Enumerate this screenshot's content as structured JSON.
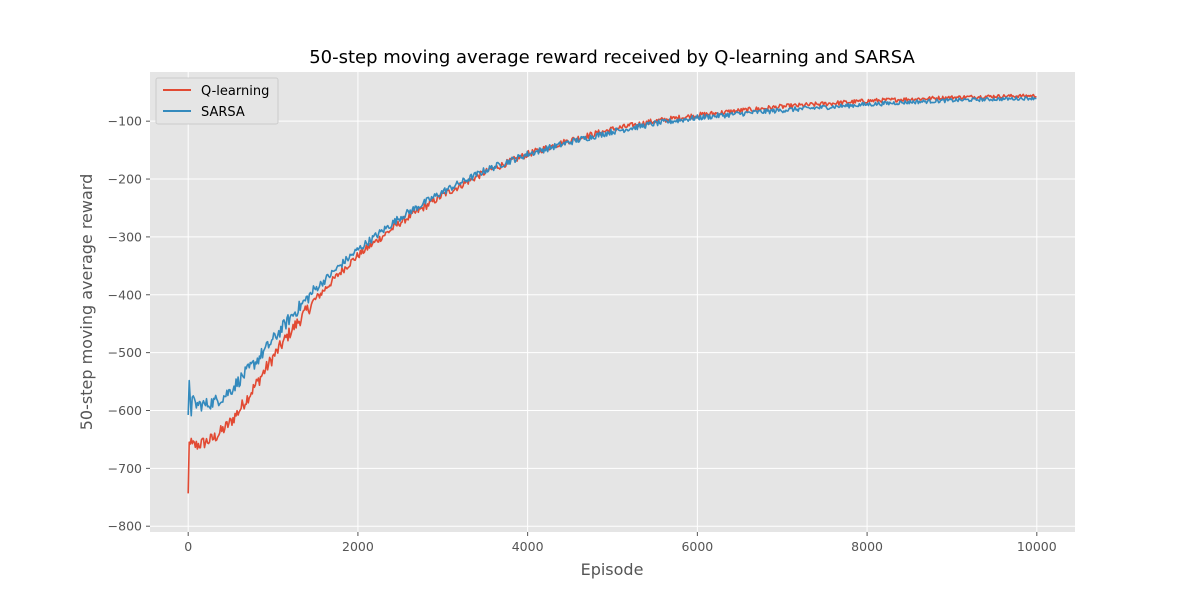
{
  "chart_data": {
    "type": "line",
    "title": "50-step moving average reward received by Q-learning and SARSA",
    "xlabel": "Episode",
    "ylabel": "50-step moving average reward",
    "xlim": [
      -450,
      10450
    ],
    "ylim": [
      -810,
      -15
    ],
    "xticks": [
      0,
      2000,
      4000,
      6000,
      8000,
      10000
    ],
    "yticks": [
      -800,
      -700,
      -600,
      -500,
      -400,
      -300,
      -200,
      -100
    ],
    "grid": true,
    "legend_position": "top-left",
    "series": [
      {
        "name": "Q-learning",
        "color": "#E24A33",
        "x": [
          0,
          10,
          30,
          60,
          100,
          200,
          300,
          400,
          500,
          600,
          800,
          1000,
          1200,
          1500,
          1800,
          2000,
          2500,
          3000,
          3500,
          4000,
          4500,
          5000,
          5500,
          6000,
          6500,
          7000,
          7500,
          8000,
          8500,
          9000,
          9500,
          10000
        ],
        "y": [
          -735,
          -690,
          -665,
          -660,
          -660,
          -655,
          -648,
          -635,
          -620,
          -600,
          -555,
          -508,
          -465,
          -408,
          -360,
          -332,
          -275,
          -228,
          -188,
          -157,
          -133,
          -114,
          -100,
          -90,
          -82,
          -75,
          -70,
          -65,
          -62,
          -59,
          -57,
          -56
        ],
        "noise": 7
      },
      {
        "name": "SARSA",
        "color": "#348ABD",
        "x": [
          0,
          10,
          30,
          60,
          100,
          200,
          300,
          400,
          500,
          600,
          800,
          1000,
          1200,
          1500,
          1800,
          2000,
          2500,
          3000,
          3500,
          4000,
          4500,
          5000,
          5500,
          6000,
          6500,
          7000,
          7500,
          8000,
          8500,
          9000,
          9500,
          10000
        ],
        "y": [
          -595,
          -575,
          -580,
          -585,
          -590,
          -590,
          -585,
          -578,
          -565,
          -548,
          -515,
          -478,
          -440,
          -390,
          -348,
          -322,
          -266,
          -222,
          -185,
          -157,
          -136,
          -118,
          -104,
          -94,
          -87,
          -81,
          -76,
          -71,
          -67,
          -64,
          -62,
          -60
        ],
        "noise": 7
      }
    ]
  }
}
